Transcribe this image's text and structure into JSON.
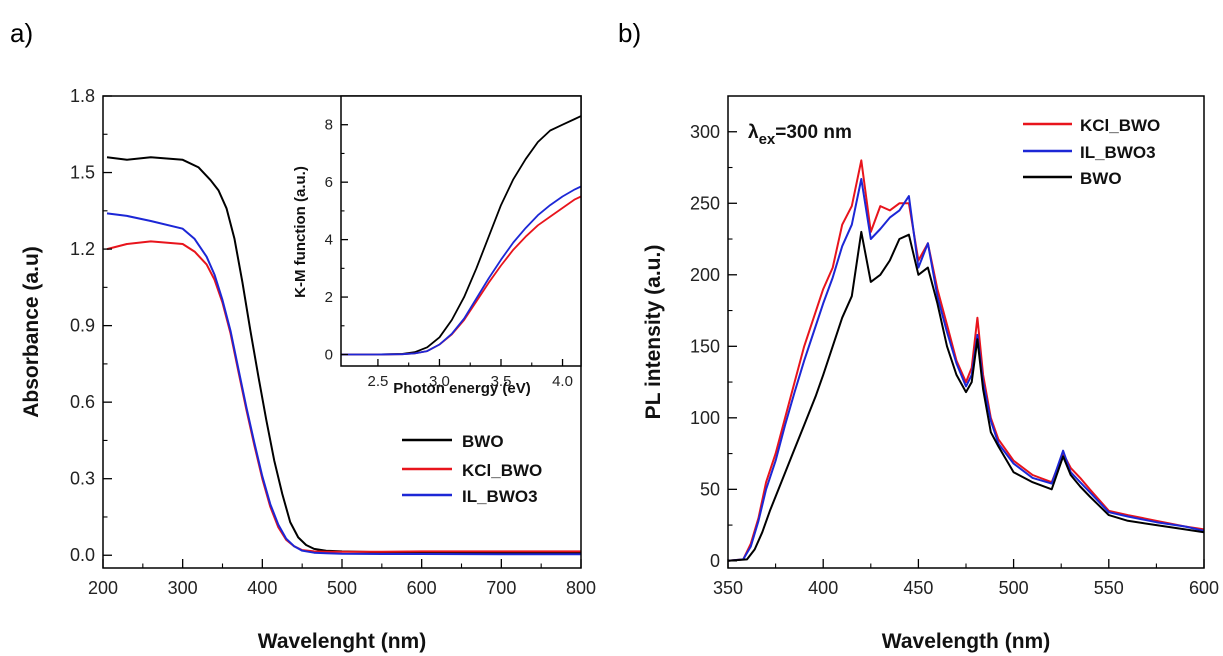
{
  "panels": {
    "a_label": "a)",
    "b_label": "b)"
  },
  "chart_data": [
    {
      "id": "absorbance",
      "type": "line",
      "xlabel": "Wavelenght (nm)",
      "ylabel": "Absorbance (a.u)",
      "xlim": [
        200,
        800
      ],
      "ylim": [
        -0.05,
        1.8
      ],
      "xticks": [
        "200",
        "300",
        "400",
        "500",
        "600",
        "700",
        "800"
      ],
      "yticks": [
        "0.0",
        "0.3",
        "0.6",
        "0.9",
        "1.2",
        "1.5",
        "1.8"
      ],
      "legend_position": "lower-right",
      "series": [
        {
          "name": "BWO",
          "color": "#000000",
          "x": [
            205,
            230,
            260,
            300,
            320,
            335,
            345,
            355,
            365,
            375,
            385,
            395,
            405,
            415,
            425,
            435,
            445,
            455,
            465,
            480,
            500,
            550,
            600,
            700,
            800
          ],
          "y": [
            1.56,
            1.55,
            1.56,
            1.55,
            1.52,
            1.47,
            1.43,
            1.36,
            1.24,
            1.07,
            0.88,
            0.7,
            0.53,
            0.37,
            0.24,
            0.13,
            0.07,
            0.04,
            0.025,
            0.018,
            0.015,
            0.012,
            0.012,
            0.01,
            0.01
          ]
        },
        {
          "name": "KCl_BWO",
          "color": "#e8141c",
          "x": [
            205,
            230,
            260,
            300,
            315,
            330,
            340,
            350,
            360,
            370,
            380,
            390,
            400,
            410,
            420,
            430,
            440,
            450,
            465,
            480,
            500,
            550,
            600,
            700,
            800
          ],
          "y": [
            1.2,
            1.22,
            1.23,
            1.22,
            1.19,
            1.14,
            1.08,
            0.99,
            0.87,
            0.72,
            0.57,
            0.43,
            0.3,
            0.19,
            0.11,
            0.06,
            0.035,
            0.02,
            0.015,
            0.014,
            0.014,
            0.014,
            0.015,
            0.015,
            0.015
          ]
        },
        {
          "name": "IL_BWO3",
          "color": "#1c27d6",
          "x": [
            205,
            230,
            260,
            300,
            315,
            330,
            340,
            350,
            360,
            370,
            380,
            390,
            400,
            410,
            420,
            430,
            440,
            450,
            465,
            480,
            500,
            550,
            600,
            700,
            800
          ],
          "y": [
            1.34,
            1.33,
            1.31,
            1.28,
            1.24,
            1.17,
            1.1,
            1.0,
            0.88,
            0.73,
            0.58,
            0.44,
            0.31,
            0.2,
            0.12,
            0.065,
            0.035,
            0.018,
            0.01,
            0.008,
            0.006,
            0.005,
            0.005,
            0.004,
            0.004
          ]
        }
      ]
    },
    {
      "id": "km-inset",
      "type": "line",
      "xlabel": "Photon energy (eV)",
      "ylabel": "K-M function (a.u.)",
      "xlim": [
        2.2,
        4.15
      ],
      "ylim": [
        -0.4,
        9
      ],
      "xticks": [
        "2.5",
        "3.0",
        "3.5",
        "4.0"
      ],
      "yticks": [
        "0",
        "2",
        "4",
        "6",
        "8"
      ],
      "series": [
        {
          "name": "BWO",
          "color": "#000000",
          "x": [
            2.2,
            2.5,
            2.7,
            2.8,
            2.9,
            3.0,
            3.1,
            3.2,
            3.3,
            3.4,
            3.5,
            3.6,
            3.7,
            3.8,
            3.9,
            4.0,
            4.1,
            4.15
          ],
          "y": [
            0,
            0,
            0.02,
            0.08,
            0.25,
            0.6,
            1.2,
            2.0,
            3.0,
            4.1,
            5.2,
            6.1,
            6.8,
            7.4,
            7.8,
            8.0,
            8.2,
            8.3
          ]
        },
        {
          "name": "KCl_BWO",
          "color": "#e8141c",
          "x": [
            2.2,
            2.5,
            2.7,
            2.8,
            2.9,
            3.0,
            3.1,
            3.2,
            3.3,
            3.4,
            3.5,
            3.6,
            3.7,
            3.8,
            3.9,
            4.0,
            4.1,
            4.15
          ],
          "y": [
            0,
            0,
            0.01,
            0.04,
            0.12,
            0.35,
            0.7,
            1.2,
            1.85,
            2.5,
            3.1,
            3.65,
            4.1,
            4.5,
            4.8,
            5.1,
            5.4,
            5.5
          ]
        },
        {
          "name": "IL_BWO3",
          "color": "#1c27d6",
          "x": [
            2.2,
            2.5,
            2.7,
            2.8,
            2.9,
            3.0,
            3.1,
            3.2,
            3.3,
            3.4,
            3.5,
            3.6,
            3.7,
            3.8,
            3.9,
            4.0,
            4.1,
            4.15
          ],
          "y": [
            0,
            0,
            0.01,
            0.04,
            0.12,
            0.35,
            0.72,
            1.25,
            1.95,
            2.65,
            3.3,
            3.9,
            4.4,
            4.85,
            5.2,
            5.5,
            5.75,
            5.85
          ]
        }
      ]
    },
    {
      "id": "pl",
      "type": "line",
      "xlabel": "Wavelength (nm)",
      "ylabel": "PL intensity (a.u.)",
      "annotation": {
        "main": "λ",
        "sub": "ex",
        "rest": "=300 nm"
      },
      "xlim": [
        350,
        600
      ],
      "ylim": [
        -5,
        325
      ],
      "xticks": [
        "350",
        "400",
        "450",
        "500",
        "550",
        "600"
      ],
      "yticks": [
        "0",
        "50",
        "100",
        "150",
        "200",
        "250",
        "300"
      ],
      "legend_position": "top-right",
      "series": [
        {
          "name": "KCl_BWO",
          "color": "#e8141c",
          "x": [
            350,
            358,
            362,
            366,
            370,
            375,
            380,
            385,
            390,
            395,
            400,
            405,
            410,
            415,
            420,
            425,
            430,
            435,
            440,
            445,
            450,
            455,
            460,
            465,
            470,
            475,
            478,
            481,
            484,
            488,
            492,
            500,
            510,
            520,
            526,
            530,
            535,
            540,
            550,
            560,
            575,
            590,
            600
          ],
          "y": [
            0,
            1,
            12,
            30,
            55,
            75,
            100,
            125,
            150,
            170,
            190,
            205,
            235,
            248,
            280,
            230,
            248,
            245,
            250,
            250,
            210,
            222,
            190,
            165,
            140,
            125,
            135,
            170,
            130,
            100,
            85,
            70,
            60,
            55,
            75,
            65,
            58,
            50,
            35,
            32,
            28,
            24,
            22
          ]
        },
        {
          "name": "IL_BWO3",
          "color": "#1c27d6",
          "x": [
            350,
            358,
            362,
            366,
            370,
            375,
            380,
            385,
            390,
            395,
            400,
            405,
            410,
            415,
            420,
            425,
            430,
            435,
            440,
            445,
            450,
            455,
            460,
            465,
            470,
            475,
            478,
            481,
            484,
            488,
            492,
            500,
            510,
            520,
            526,
            530,
            535,
            540,
            550,
            560,
            575,
            590,
            600
          ],
          "y": [
            0,
            1,
            10,
            28,
            50,
            70,
            95,
            118,
            140,
            160,
            180,
            198,
            220,
            235,
            267,
            225,
            232,
            240,
            245,
            255,
            205,
            222,
            185,
            160,
            138,
            122,
            130,
            158,
            125,
            98,
            82,
            68,
            58,
            54,
            77,
            62,
            55,
            48,
            34,
            31,
            27,
            24,
            21
          ]
        },
        {
          "name": "BWO",
          "color": "#000000",
          "x": [
            350,
            360,
            364,
            368,
            372,
            378,
            384,
            390,
            396,
            400,
            405,
            410,
            415,
            420,
            425,
            430,
            435,
            440,
            445,
            450,
            455,
            460,
            465,
            470,
            475,
            478,
            481,
            484,
            488,
            492,
            500,
            510,
            520,
            526,
            530,
            535,
            540,
            550,
            560,
            575,
            590,
            600
          ],
          "y": [
            0,
            1,
            8,
            20,
            35,
            55,
            75,
            95,
            115,
            130,
            150,
            170,
            185,
            230,
            195,
            200,
            210,
            225,
            228,
            200,
            205,
            180,
            150,
            130,
            118,
            125,
            155,
            120,
            90,
            80,
            62,
            55,
            50,
            73,
            60,
            52,
            45,
            32,
            28,
            25,
            22,
            20
          ]
        }
      ]
    }
  ]
}
